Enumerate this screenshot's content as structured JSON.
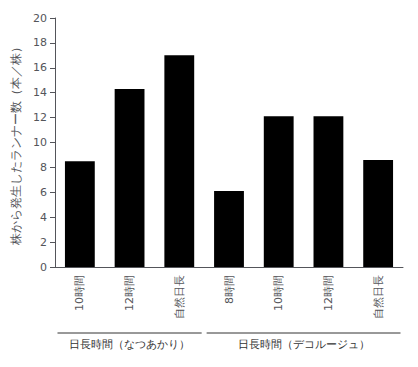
{
  "chart_data": {
    "type": "bar",
    "groups": [
      {
        "label": "日長時間（なつあかり）",
        "categories": [
          "10時間",
          "12時間",
          "自然日長"
        ],
        "values": [
          8.5,
          14.3,
          17.0
        ]
      },
      {
        "label": "日長時間（デコルージュ）",
        "categories": [
          "8時間",
          "10時間",
          "12時間",
          "自然日長"
        ],
        "values": [
          6.1,
          12.1,
          12.1,
          8.6
        ]
      }
    ],
    "ylabel": "株から発生したランナー数（本／株）",
    "color": "#000000",
    "ylim": [
      0,
      20
    ],
    "yticks": [
      0,
      2,
      4,
      6,
      8,
      10,
      12,
      14,
      16,
      18,
      20
    ],
    "grid": false
  }
}
